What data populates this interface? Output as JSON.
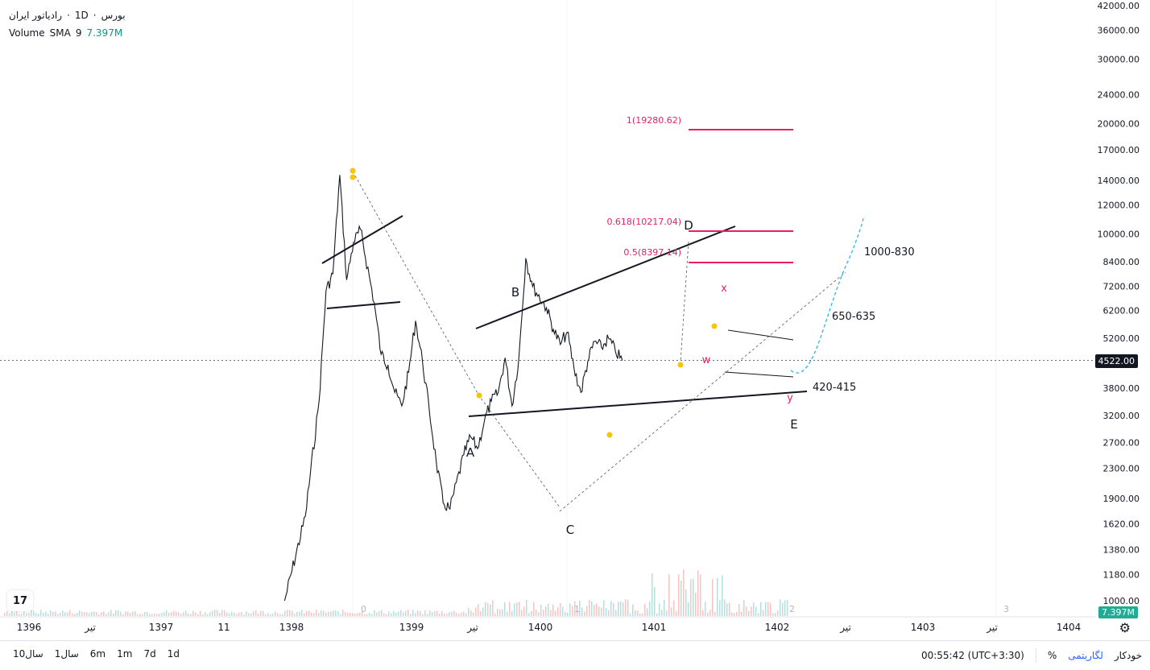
{
  "legend": {
    "symbol_title": "رادیاتور ایران",
    "interval": "1D",
    "exchange": "بورس",
    "volume_label": "Volume",
    "sma_label": "SMA",
    "sma_period": "9",
    "volume_value": "7.397M"
  },
  "price_axis_ticks": [
    "42000.00",
    "36000.00",
    "30000.00",
    "24000.00",
    "20000.00",
    "17000.00",
    "14000.00",
    "12000.00",
    "10000.00",
    "8400.00",
    "7200.00",
    "6200.00",
    "5200.00",
    "4522.00",
    "3800.00",
    "3200.00",
    "2700.00",
    "2300.00",
    "1900.00",
    "1620.00",
    "1380.00",
    "1180.00",
    "1000.00"
  ],
  "current_price": "4522.00",
  "volume_badge": "7.397M",
  "time_axis_labels": [
    "1396",
    "تیر",
    "1397",
    "11",
    "1398",
    "1399",
    "تیر",
    "1400",
    "1401",
    "1402",
    "تیر",
    "1403",
    "تیر",
    "1404"
  ],
  "pane_numbers": [
    "0",
    "1",
    "2",
    "3"
  ],
  "annotations": {
    "wave_labels": [
      "A",
      "B",
      "C",
      "D",
      "E"
    ],
    "sub_wave_labels": [
      "x",
      "w",
      "y"
    ],
    "targets": [
      "1000-830",
      "650-635",
      "420-415"
    ],
    "fib_levels": [
      "1(19280.62)",
      "0.618(10217.04)",
      "0.5(8397.14)"
    ]
  },
  "bottom_bar": {
    "ranges": [
      "10سال",
      "1سال",
      "6m",
      "1m",
      "7d",
      "1d"
    ],
    "time": "00:55:42 (UTC+3:30)",
    "percent": "%",
    "log": "لگاریتمی",
    "auto": "خودکار"
  },
  "colors": {
    "candle": "#131722",
    "fib": "#e91e63",
    "projection": "#2ab8e8",
    "volume_up": "#26a69a",
    "volume_down": "#ef5350",
    "marker": "#f7c600",
    "accent": "#2962ff"
  },
  "chart_data": {
    "type": "line",
    "scale": "log",
    "y_range": [
      950,
      44000
    ],
    "x_range": [
      "1396",
      "1404"
    ],
    "series": [
      {
        "x": [
          "1397-12",
          "1398-03",
          "1398-05",
          "1398-06",
          "1398-07",
          "1398-08",
          "1398-09",
          "1398-10",
          "1398-11",
          "1399-01",
          "1399-02",
          "1399-03",
          "1399-04",
          "1399-05",
          "1399-06",
          "1399-07",
          "1399-08",
          "1399-09",
          "1399-10",
          "1399-11",
          "1399-12",
          "1400-02",
          "1400-03",
          "1400-04",
          "1400-05",
          "1400-06",
          "1400-07",
          "1400-08",
          "1400-09",
          "1400-10",
          "1400-11",
          "1400-12",
          "1401-02",
          "1401-03",
          "1401-04",
          "1401-05",
          "1401-06",
          "1401-07",
          "1401-08",
          "1401-09",
          "1401-10",
          "1401-11",
          "1401-12",
          "1402-01"
        ],
        "values": [
          1000,
          1700,
          3500,
          7000,
          7800,
          14500,
          7500,
          9500,
          10300,
          6500,
          4700,
          4400,
          3700,
          3400,
          4200,
          5800,
          4500,
          3300,
          2400,
          1850,
          1780,
          2500,
          2800,
          2600,
          3100,
          3500,
          3700,
          4600,
          3400,
          4600,
          8600,
          7200,
          6300,
          5500,
          5000,
          5400,
          4300,
          3700,
          4500,
          5100,
          4900,
          5200,
          4800,
          4522
        ]
      }
    ]
  }
}
